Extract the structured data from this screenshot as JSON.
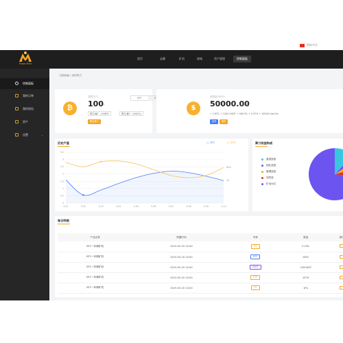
{
  "header": {
    "lang": "简体中文",
    "logo_text": "Power Mine",
    "nav": [
      "首页",
      "云算",
      "矿机",
      "商城",
      "资产管理",
      "控制面板"
    ],
    "nav_active_index": 5
  },
  "sidebar": {
    "items": [
      {
        "label": "控制面板",
        "active": true,
        "icon": "dashboard-icon"
      },
      {
        "label": "我的订单",
        "active": false,
        "icon": "orders-icon"
      },
      {
        "label": "我的钱包",
        "active": false,
        "icon": "wallet-icon"
      },
      {
        "label": "资产",
        "active": false,
        "icon": "assets-icon"
      },
      {
        "label": "设置",
        "active": false,
        "icon": "settings-icon",
        "expandable": true
      }
    ]
  },
  "breadcrumb": "控制面板 / 我的算力",
  "card1": {
    "caption": "总算力(T)",
    "value": "100",
    "unit": "T",
    "tabs": [
      "BTC",
      "ETH"
    ],
    "chip1": "算力/每T：100BTC",
    "chip2": "算力/每T：100(FIL)",
    "button": "购买算力"
  },
  "card2": {
    "caption": "总收益(USDT)",
    "value": "50000.00",
    "unit": "USDT",
    "detail": "= 1 BTC + 1300 USDT + 500 FIL + 0 ETH + 10000 CoinVin",
    "btn_blue": "充币",
    "btn_orange": "提币"
  },
  "chart_section": {
    "title": "历史产值",
    "legend": [
      "BTC",
      "ETH"
    ],
    "right_labels": [
      "80%",
      "40"
    ]
  },
  "chart_data": {
    "type": "line",
    "x": [
      "5-01",
      "5-02",
      "5-03",
      "5-04",
      "5-05",
      "5-06",
      "5-07",
      "5-08",
      "5-09",
      "5-10"
    ],
    "yticks": [
      3.5,
      3,
      2.5,
      2,
      1.5,
      1,
      0.5,
      0
    ],
    "ylim": [
      0,
      3.5
    ],
    "series": [
      {
        "name": "BTC",
        "color": "#4e7cf6",
        "values": [
          1.6,
          0.55,
          0.9,
          1.35,
          1.75,
          2.05,
          2.2,
          2.1,
          1.85,
          1.55
        ]
      },
      {
        "name": "ETH",
        "color": "#f5c25a",
        "values": [
          2.8,
          2.5,
          2.85,
          2.9,
          2.7,
          2.3,
          1.9,
          1.75,
          1.9,
          2.45
        ]
      }
    ],
    "grid": true
  },
  "pie_section": {
    "title": "算力收益构成",
    "legend": [
      {
        "label": "直推奖励",
        "color": "#3bc6e0"
      },
      {
        "label": "团队奖励",
        "color": "#7b4ef6"
      },
      {
        "label": "管理奖励",
        "color": "#f5a623"
      },
      {
        "label": "领导奖",
        "color": "#e0301e"
      },
      {
        "label": "矿池分红",
        "color": "#6c54f0"
      }
    ]
  },
  "pie_chart_data": {
    "type": "pie",
    "labels": [
      "直推奖励",
      "团队奖励",
      "管理奖励",
      "领导奖",
      "矿池分红"
    ],
    "values": [
      12,
      4,
      5,
      6,
      73
    ]
  },
  "table_section": {
    "title": "每日明细",
    "headers": [
      "产品名称",
      "购置时间",
      "币种",
      "数量",
      "操作"
    ],
    "rows": [
      {
        "name": "BTC一年期矿机",
        "time": "2019-05-20 10:00",
        "coin": "FIL",
        "coin_tag": "fil",
        "qty": "0.1FIL"
      },
      {
        "name": "BTC一年期矿机",
        "time": "2019-05-20 10:00",
        "coin": "BTC",
        "coin_tag": "btc",
        "qty": "1BTC"
      },
      {
        "name": "BTC一年期矿机",
        "time": "2019-05-20 10:00",
        "coin": "USDT",
        "coin_tag": "usdt",
        "qty": "100USDT"
      },
      {
        "name": "BTC一年期矿机",
        "time": "2019-05-20 10:00",
        "coin": "ETH",
        "coin_tag": "eth",
        "qty": "1ETH"
      },
      {
        "name": "BTC一年期矿机",
        "time": "2019-05-20 10:00",
        "coin": "FIL",
        "coin_tag": "fil",
        "qty": "1FIL"
      }
    ]
  }
}
